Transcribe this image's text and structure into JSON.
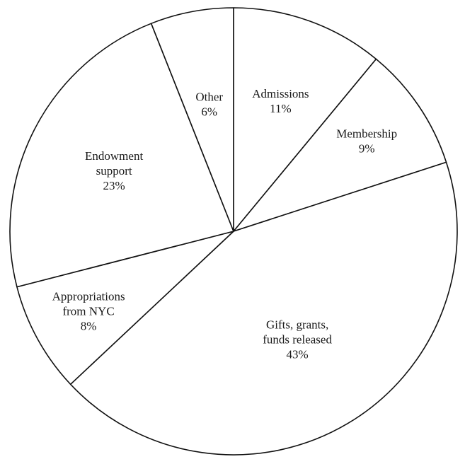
{
  "chart_data": {
    "type": "pie",
    "title": "",
    "start_angle_deg": 0,
    "direction": "clockwise",
    "slices": [
      {
        "name": "Admissions",
        "label_lines": [
          "Admissions"
        ],
        "value": 11,
        "value_label": "11%"
      },
      {
        "name": "Membership",
        "label_lines": [
          "Membership"
        ],
        "value": 9,
        "value_label": "9%"
      },
      {
        "name": "Gifts, grants, funds released",
        "label_lines": [
          "Gifts, grants,",
          "funds released"
        ],
        "value": 43,
        "value_label": "43%"
      },
      {
        "name": "Appropriations from NYC",
        "label_lines": [
          "Appropriations",
          "from NYC"
        ],
        "value": 8,
        "value_label": "8%"
      },
      {
        "name": "Endowment support",
        "label_lines": [
          "Endowment",
          "support"
        ],
        "value": 23,
        "value_label": "23%"
      },
      {
        "name": "Other",
        "label_lines": [
          "Other"
        ],
        "value": 6,
        "value_label": "6%"
      }
    ],
    "colors": {
      "fill": "#ffffff",
      "stroke": "#111111",
      "text": "#1a1a1a"
    },
    "legend": "none"
  }
}
